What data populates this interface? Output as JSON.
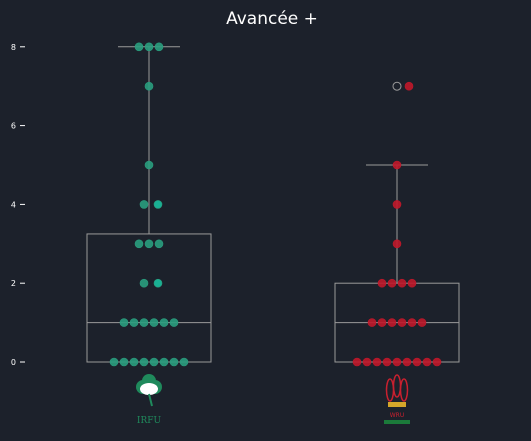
{
  "chart_data": {
    "type": "box-swarm",
    "title": "Avancée +",
    "xlabel": "",
    "ylabel": "",
    "ylim": [
      -0.35,
      8.3
    ],
    "yticks": [
      "0",
      "2",
      "4",
      "6",
      "8"
    ],
    "grid": false,
    "legend": "none",
    "colors": {
      "background": "#1c212b",
      "box_stroke": "#9a9a9a",
      "tick": "#ffffff"
    },
    "categories": [
      {
        "team": "Ireland",
        "logo": "irfu-shamrock-logo",
        "logo_text": "IRFU",
        "logo_color": "#1f8a5c",
        "point_color": "#2a9d7e",
        "highlight_color": "#19c0a0",
        "box": {
          "q1": 0,
          "median": 1,
          "q3": 3.25,
          "whisker_low": 0,
          "whisker_high": 8
        },
        "points": [
          8,
          8,
          8,
          7,
          5,
          4,
          4,
          3,
          3,
          3,
          2,
          2,
          1,
          1,
          1,
          1,
          1,
          1,
          0,
          0,
          0,
          0,
          0,
          0,
          0,
          0
        ],
        "highlighted_values": [
          4,
          2
        ]
      },
      {
        "team": "Wales",
        "logo": "wru-feathers-logo",
        "logo_text": "WRU",
        "logo_color": "#c8202f",
        "point_color": "#c0182a",
        "highlight_color": "#e0283a",
        "box": {
          "q1": 0,
          "median": 1,
          "q3": 2,
          "whisker_low": 0,
          "whisker_high": 5
        },
        "outliers": [
          7
        ],
        "points": [
          7,
          5,
          4,
          3,
          2,
          2,
          2,
          2,
          1,
          1,
          1,
          1,
          1,
          1,
          0,
          0,
          0,
          0,
          0,
          0,
          0,
          0,
          0
        ],
        "highlighted_values": []
      }
    ]
  }
}
